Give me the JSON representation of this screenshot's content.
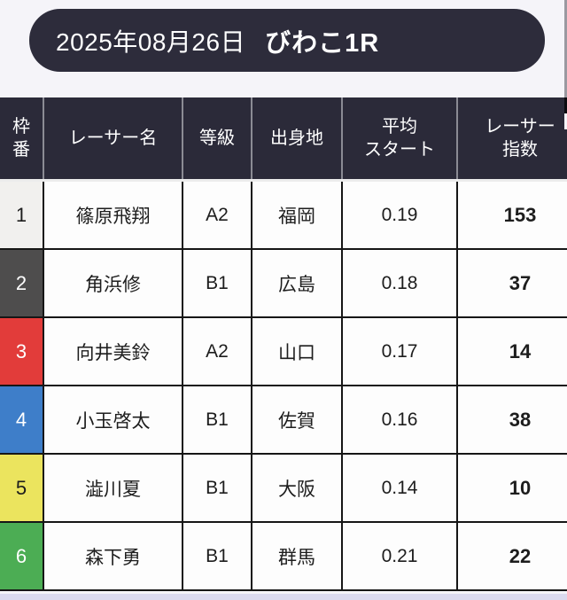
{
  "title_bar": {
    "date": "2025年08月26日",
    "race": "びわこ1R"
  },
  "colors": {
    "page_bg": "#f5f4f9",
    "bottom_strip": "#dbdaef",
    "title_bg": "#2d2c3b",
    "table_header_bg": "#2b2a39",
    "header_divider": "#8b8b94",
    "cell_border": "#161616",
    "cell_bg": "#fdfdfd"
  },
  "table": {
    "headers": {
      "waku": "枠\n番",
      "name": "レーサー名",
      "grade": "等級",
      "origin": "出身地",
      "avg_start": "平均\nスタート",
      "index": "レーサー\n指数"
    },
    "rows": [
      {
        "waku": "1",
        "name": "篠原飛翔",
        "grade": "A2",
        "origin": "福岡",
        "avg_start": "0.19",
        "index": "153",
        "waku_bg": "#f1f0ee",
        "waku_color": "#1c1c1c"
      },
      {
        "waku": "2",
        "name": "角浜修",
        "grade": "B1",
        "origin": "広島",
        "avg_start": "0.18",
        "index": "37",
        "waku_bg": "#4e4d4d",
        "waku_color": "#ffffff"
      },
      {
        "waku": "3",
        "name": "向井美鈴",
        "grade": "A2",
        "origin": "山口",
        "avg_start": "0.17",
        "index": "14",
        "waku_bg": "#e23c3a",
        "waku_color": "#ffffff"
      },
      {
        "waku": "4",
        "name": "小玉啓太",
        "grade": "B1",
        "origin": "佐賀",
        "avg_start": "0.16",
        "index": "38",
        "waku_bg": "#3e7ec9",
        "waku_color": "#ffffff"
      },
      {
        "waku": "5",
        "name": "澁川夏",
        "grade": "B1",
        "origin": "大阪",
        "avg_start": "0.14",
        "index": "10",
        "waku_bg": "#ebe45e",
        "waku_color": "#1c1c1c"
      },
      {
        "waku": "6",
        "name": "森下勇",
        "grade": "B1",
        "origin": "群馬",
        "avg_start": "0.21",
        "index": "22",
        "waku_bg": "#4cad54",
        "waku_color": "#ffffff"
      }
    ]
  }
}
